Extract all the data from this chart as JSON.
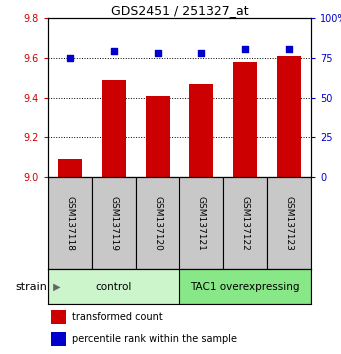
{
  "title": "GDS2451 / 251327_at",
  "samples": [
    "GSM137118",
    "GSM137119",
    "GSM137120",
    "GSM137121",
    "GSM137122",
    "GSM137123"
  ],
  "red_values": [
    9.09,
    9.49,
    9.41,
    9.47,
    9.58,
    9.61
  ],
  "blue_values": [
    9.6,
    9.635,
    9.625,
    9.623,
    9.642,
    9.642
  ],
  "ylim_left": [
    9.0,
    9.8
  ],
  "ylim_right": [
    0,
    100
  ],
  "yticks_left": [
    9.0,
    9.2,
    9.4,
    9.6,
    9.8
  ],
  "yticks_right": [
    0,
    25,
    50,
    75,
    100
  ],
  "groups": [
    {
      "label": "control",
      "start": 0,
      "end": 3,
      "color": "#ccf5cc"
    },
    {
      "label": "TAC1 overexpressing",
      "start": 3,
      "end": 6,
      "color": "#88e888"
    }
  ],
  "bar_color": "#cc0000",
  "dot_color": "#0000cc",
  "left_tick_color": "#cc0000",
  "right_tick_color": "#0000cc",
  "bg_sample": "#c8c8c8",
  "legend_red": "transformed count",
  "legend_blue": "percentile rank within the sample",
  "xlabel_strain": "strain"
}
